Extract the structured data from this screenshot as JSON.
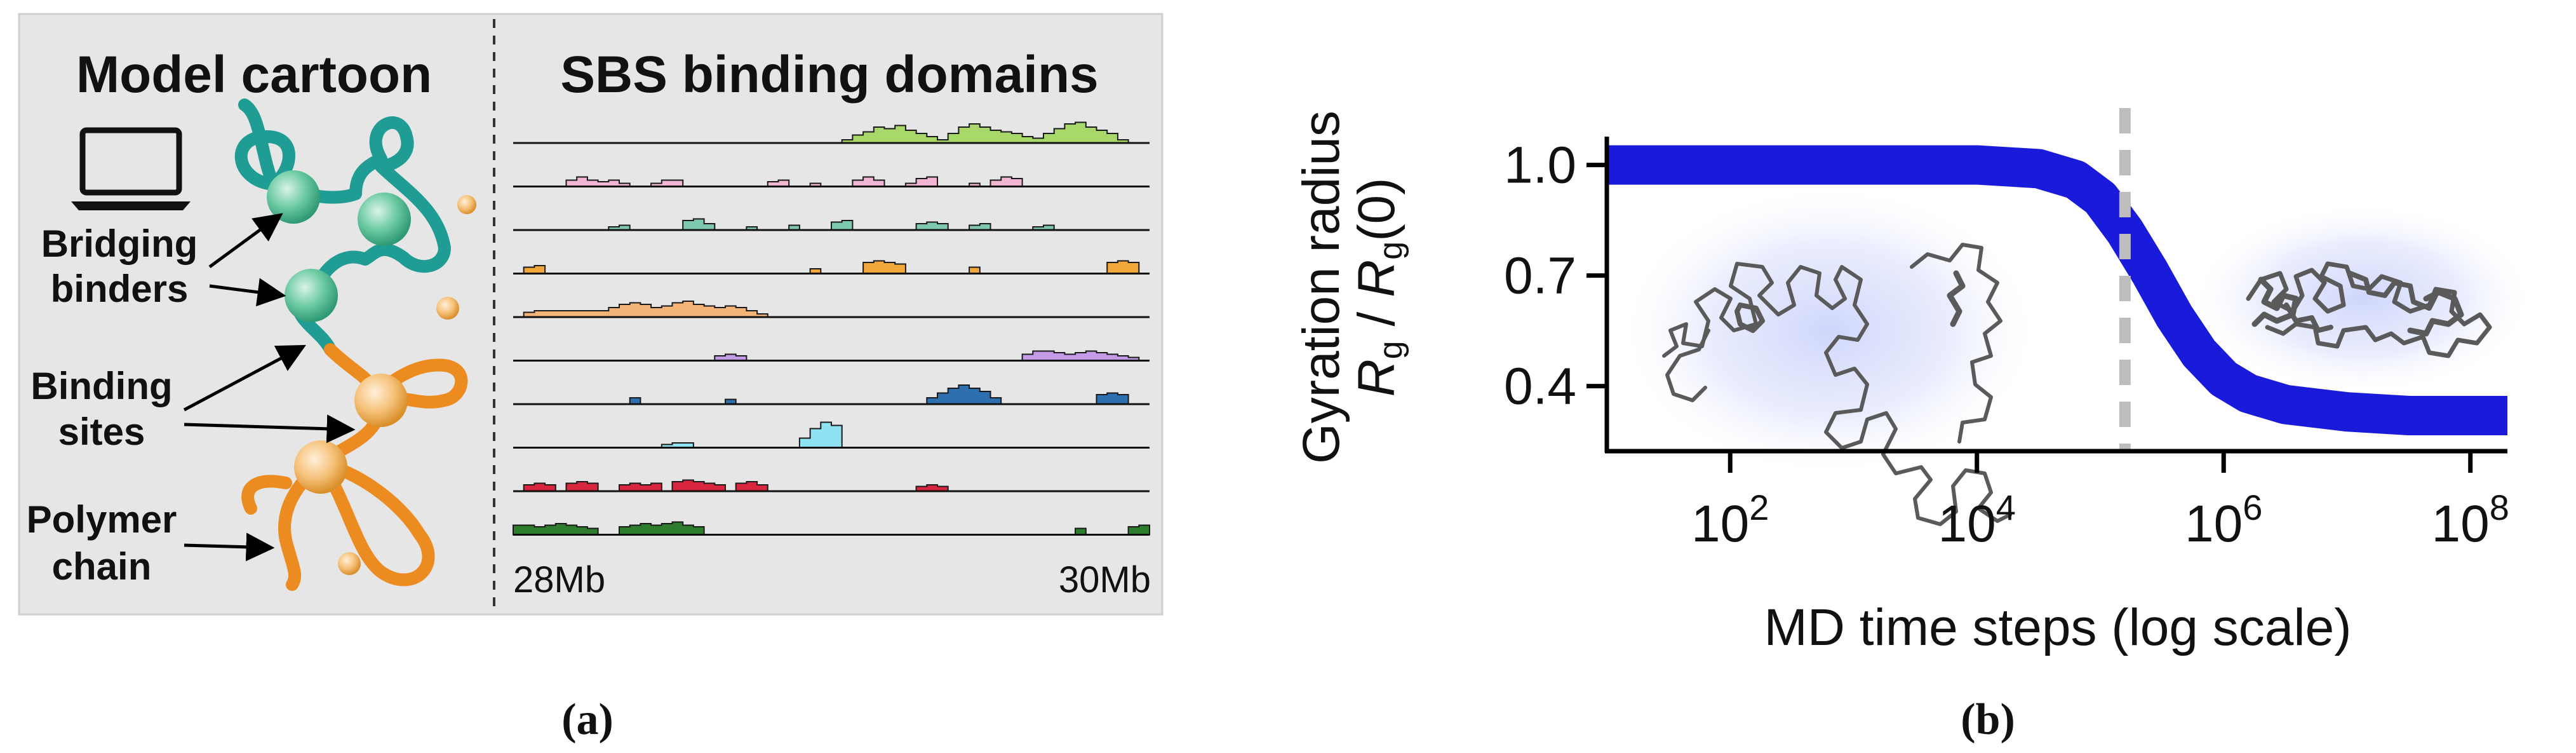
{
  "panel_a": {
    "caption": "(a)",
    "left_title": "Model cartoon",
    "right_title": "SBS binding domains",
    "labels": {
      "bridging": [
        "Bridging",
        "binders"
      ],
      "binding": [
        "Binding",
        "sites"
      ],
      "polymer": [
        "Polymer",
        "chain"
      ]
    },
    "tick_left": "28Mb",
    "tick_right": "30Mb",
    "colors": {
      "panel_bg": "#e6e6e6",
      "green_binder": "#5cbf99",
      "orange_binder": "#f2b66d",
      "teal_chain": "#1f9c93",
      "orange_chain": "#ec8b1f"
    },
    "icon": "laptop-icon",
    "tracks": [
      {
        "color": "#a8d86a",
        "profile": [
          0,
          0,
          0,
          0,
          0,
          0,
          0,
          0,
          0,
          0,
          0,
          0,
          0,
          0,
          0,
          0,
          0,
          0,
          0,
          0,
          0,
          0,
          0,
          0,
          0,
          0,
          0,
          0,
          0,
          0,
          0,
          0.1,
          0.25,
          0.35,
          0.5,
          0.45,
          0.55,
          0.4,
          0.3,
          0.2,
          0.1,
          0.3,
          0.5,
          0.6,
          0.5,
          0.4,
          0.35,
          0.3,
          0.2,
          0.15,
          0.3,
          0.45,
          0.6,
          0.65,
          0.5,
          0.4,
          0.3,
          0.1,
          0,
          0
        ]
      },
      {
        "color": "#f3b6d2",
        "profile": [
          0,
          0,
          0,
          0,
          0,
          0.2,
          0.3,
          0.2,
          0.15,
          0.2,
          0.1,
          0,
          0,
          0.1,
          0.2,
          0.2,
          0,
          0,
          0,
          0,
          0,
          0,
          0,
          0,
          0.15,
          0.2,
          0,
          0,
          0.1,
          0,
          0,
          0,
          0.2,
          0.3,
          0.2,
          0,
          0,
          0.1,
          0.25,
          0.3,
          0,
          0,
          0,
          0.1,
          0,
          0.2,
          0.3,
          0.25,
          0,
          0,
          0,
          0,
          0,
          0,
          0,
          0,
          0,
          0,
          0,
          0
        ]
      },
      {
        "color": "#7ec9ad",
        "profile": [
          0,
          0,
          0,
          0,
          0,
          0,
          0,
          0,
          0,
          0.1,
          0.15,
          0,
          0,
          0,
          0,
          0,
          0.3,
          0.35,
          0.2,
          0,
          0,
          0,
          0.1,
          0,
          0,
          0,
          0.15,
          0,
          0,
          0,
          0.25,
          0.3,
          0,
          0,
          0,
          0,
          0,
          0,
          0.2,
          0.25,
          0.2,
          0,
          0,
          0.15,
          0.2,
          0,
          0,
          0,
          0,
          0.1,
          0.15,
          0,
          0,
          0,
          0,
          0,
          0,
          0,
          0,
          0
        ]
      },
      {
        "color": "#f2a73a",
        "profile": [
          0,
          0.2,
          0.25,
          0,
          0,
          0,
          0,
          0,
          0,
          0,
          0,
          0,
          0,
          0,
          0,
          0,
          0,
          0,
          0,
          0,
          0,
          0,
          0,
          0,
          0,
          0,
          0,
          0,
          0.15,
          0,
          0,
          0,
          0,
          0.35,
          0.4,
          0.35,
          0.3,
          0,
          0,
          0,
          0,
          0,
          0,
          0.2,
          0,
          0,
          0,
          0,
          0,
          0,
          0,
          0,
          0,
          0,
          0,
          0,
          0.35,
          0.4,
          0.35,
          0
        ]
      },
      {
        "color": "#f4b478",
        "profile": [
          0,
          0.15,
          0.2,
          0.2,
          0.2,
          0.2,
          0.2,
          0.2,
          0.2,
          0.3,
          0.4,
          0.45,
          0.4,
          0.3,
          0.35,
          0.45,
          0.5,
          0.4,
          0.35,
          0.3,
          0.35,
          0.3,
          0.2,
          0.1,
          0,
          0,
          0,
          0,
          0,
          0,
          0,
          0,
          0,
          0,
          0,
          0,
          0,
          0,
          0,
          0,
          0,
          0,
          0,
          0,
          0,
          0,
          0,
          0,
          0,
          0,
          0,
          0,
          0,
          0,
          0,
          0,
          0,
          0,
          0,
          0
        ]
      },
      {
        "color": "#c39ae6",
        "profile": [
          0,
          0,
          0,
          0,
          0,
          0,
          0,
          0,
          0,
          0,
          0,
          0,
          0,
          0,
          0,
          0,
          0,
          0,
          0,
          0.15,
          0.2,
          0.15,
          0,
          0,
          0,
          0,
          0,
          0,
          0,
          0,
          0,
          0,
          0,
          0,
          0,
          0,
          0,
          0,
          0,
          0,
          0,
          0,
          0,
          0,
          0,
          0,
          0,
          0,
          0.2,
          0.3,
          0.3,
          0.25,
          0.2,
          0.25,
          0.3,
          0.25,
          0.2,
          0.15,
          0.1,
          0
        ]
      },
      {
        "color": "#2e6fb0",
        "profile": [
          0,
          0,
          0,
          0,
          0,
          0,
          0,
          0,
          0,
          0,
          0,
          0.2,
          0,
          0,
          0,
          0,
          0,
          0,
          0,
          0,
          0.15,
          0,
          0,
          0,
          0,
          0,
          0,
          0,
          0,
          0,
          0,
          0,
          0,
          0,
          0,
          0,
          0,
          0,
          0,
          0.2,
          0.35,
          0.5,
          0.6,
          0.5,
          0.4,
          0.2,
          0,
          0,
          0,
          0,
          0,
          0,
          0,
          0,
          0,
          0.3,
          0.35,
          0.3,
          0,
          0
        ]
      },
      {
        "color": "#8fe2f2",
        "profile": [
          0,
          0,
          0,
          0,
          0,
          0,
          0,
          0,
          0,
          0,
          0,
          0,
          0,
          0,
          0.1,
          0.15,
          0.15,
          0,
          0,
          0,
          0,
          0,
          0,
          0,
          0,
          0,
          0,
          0.3,
          0.6,
          0.8,
          0.7,
          0,
          0,
          0,
          0,
          0,
          0,
          0,
          0,
          0,
          0,
          0,
          0,
          0,
          0,
          0,
          0,
          0,
          0,
          0,
          0,
          0,
          0,
          0,
          0,
          0,
          0,
          0,
          0,
          0
        ]
      },
      {
        "color": "#d7263d",
        "profile": [
          0,
          0.2,
          0.25,
          0.2,
          0,
          0.25,
          0.3,
          0.25,
          0,
          0,
          0.2,
          0.25,
          0.2,
          0.25,
          0,
          0.3,
          0.35,
          0.3,
          0.25,
          0.2,
          0,
          0.25,
          0.3,
          0.2,
          0,
          0,
          0,
          0,
          0,
          0,
          0,
          0,
          0,
          0,
          0,
          0,
          0,
          0,
          0.15,
          0.2,
          0.15,
          0,
          0,
          0,
          0,
          0,
          0,
          0,
          0,
          0,
          0,
          0,
          0,
          0,
          0,
          0,
          0,
          0,
          0,
          0
        ]
      },
      {
        "color": "#2e7d2e",
        "profile": [
          0.3,
          0.3,
          0.25,
          0.3,
          0.35,
          0.3,
          0.25,
          0.2,
          0,
          0,
          0.25,
          0.3,
          0.35,
          0.3,
          0.35,
          0.4,
          0.3,
          0.25,
          0,
          0,
          0,
          0,
          0,
          0,
          0,
          0,
          0,
          0,
          0,
          0,
          0,
          0,
          0,
          0,
          0,
          0,
          0,
          0,
          0,
          0,
          0,
          0,
          0,
          0,
          0,
          0,
          0,
          0,
          0,
          0,
          0,
          0,
          0,
          0.2,
          0,
          0,
          0,
          0,
          0.25,
          0.3
        ]
      }
    ]
  },
  "panel_b": {
    "caption": "(b)",
    "ylabel_line1": "Gyration radius",
    "ylabel_line2_parts": [
      "R",
      "g",
      " / ",
      "R",
      "g",
      "(0)"
    ],
    "xlabel": "MD time steps (log scale)",
    "x_ticks": [
      {
        "base": "10",
        "exp": "2",
        "value": 2
      },
      {
        "base": "10",
        "exp": "4",
        "value": 4
      },
      {
        "base": "10",
        "exp": "6",
        "value": 6
      },
      {
        "base": "10",
        "exp": "8",
        "value": 8
      }
    ],
    "y_ticks": [
      {
        "label": "1.0",
        "value": 1.0
      },
      {
        "label": "0.7",
        "value": 0.7
      },
      {
        "label": "0.4",
        "value": 0.4
      }
    ],
    "colors": {
      "curve": "#1a1adb",
      "dashed_line": "#bdbdbd",
      "glow": "#cfd6fb",
      "polymer": "#555555"
    }
  },
  "chart_data": {
    "type": "line",
    "xlabel": "MD time steps (log scale)",
    "ylabel": "Gyration radius Rg / Rg(0)",
    "x_scale": "log10",
    "xlim": [
      1,
      8.3
    ],
    "ylim": [
      0.22,
      1.12
    ],
    "vline_x": 5.2,
    "series": [
      {
        "x": [
          1.0,
          2.0,
          3.0,
          4.0,
          4.5,
          4.8,
          5.0,
          5.2,
          5.4,
          5.6,
          5.8,
          6.0,
          6.2,
          6.5,
          7.0,
          7.5,
          8.0,
          8.3
        ],
        "values": [
          1.0,
          1.0,
          1.0,
          1.0,
          0.99,
          0.96,
          0.91,
          0.82,
          0.71,
          0.59,
          0.49,
          0.42,
          0.38,
          0.35,
          0.33,
          0.32,
          0.32,
          0.32
        ]
      }
    ]
  }
}
